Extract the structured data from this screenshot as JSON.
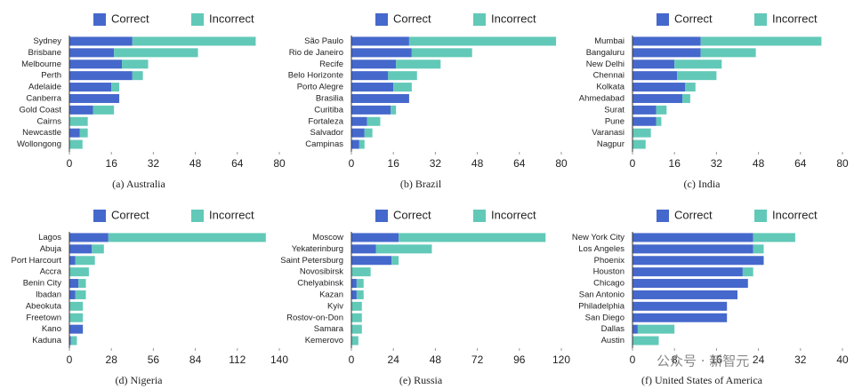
{
  "chart_data": [
    {
      "type": "bar",
      "orientation": "horizontal",
      "title": "(a) Australia",
      "categories": [
        "Sydney",
        "Brisbane",
        "Melbourne",
        "Perth",
        "Adelaide",
        "Canberra",
        "Gold Coast",
        "Cairns",
        "Newcastle",
        "Wollongong"
      ],
      "series": [
        {
          "name": "Correct",
          "color": "#4568cc",
          "values": [
            24,
            17,
            20,
            24,
            16,
            19,
            9,
            0,
            4,
            0
          ]
        },
        {
          "name": "Incorrect",
          "color": "#62c9b8",
          "values": [
            47,
            32,
            10,
            4,
            3,
            0,
            8,
            7,
            3,
            5
          ]
        }
      ],
      "xlim": [
        0,
        80
      ],
      "xticks": [
        0,
        16,
        32,
        48,
        64,
        80
      ]
    },
    {
      "type": "bar",
      "orientation": "horizontal",
      "title": "(b) Brazil",
      "categories": [
        "São Paulo",
        "Rio de Janeiro",
        "Recife",
        "Belo Horizonte",
        "Porto Alegre",
        "Brasilia",
        "Curitiba",
        "Fortaleza",
        "Salvador",
        "Campinas"
      ],
      "series": [
        {
          "name": "Correct",
          "color": "#4568cc",
          "values": [
            22,
            23,
            17,
            14,
            16,
            22,
            15,
            6,
            5,
            3
          ]
        },
        {
          "name": "Incorrect",
          "color": "#62c9b8",
          "values": [
            56,
            23,
            17,
            11,
            7,
            0,
            2,
            5,
            3,
            2
          ]
        }
      ],
      "xlim": [
        0,
        80
      ],
      "xticks": [
        0,
        16,
        32,
        48,
        64,
        80
      ]
    },
    {
      "type": "bar",
      "orientation": "horizontal",
      "title": "(c) India",
      "categories": [
        "Mumbai",
        "Bangaluru",
        "New Delhi",
        "Chennai",
        "Kolkata",
        "Ahmedabad",
        "Surat",
        "Pune",
        "Varanasi",
        "Nagpur"
      ],
      "series": [
        {
          "name": "Correct",
          "color": "#4568cc",
          "values": [
            26,
            26,
            16,
            17,
            20,
            19,
            9,
            9,
            0,
            0
          ]
        },
        {
          "name": "Incorrect",
          "color": "#62c9b8",
          "values": [
            46,
            21,
            18,
            15,
            4,
            3,
            4,
            2,
            7,
            5
          ]
        }
      ],
      "xlim": [
        0,
        80
      ],
      "xticks": [
        0,
        16,
        32,
        48,
        64,
        80
      ]
    },
    {
      "type": "bar",
      "orientation": "horizontal",
      "title": "(d) Nigeria",
      "categories": [
        "Lagos",
        "Abuja",
        "Port Harcourt",
        "Accra",
        "Benin City",
        "Ibadan",
        "Abeokuta",
        "Freetown",
        "Kano",
        "Kaduna"
      ],
      "series": [
        {
          "name": "Correct",
          "color": "#4568cc",
          "values": [
            26,
            15,
            4,
            0,
            6,
            4,
            0,
            0,
            9,
            1
          ]
        },
        {
          "name": "Incorrect",
          "color": "#62c9b8",
          "values": [
            105,
            8,
            13,
            13,
            5,
            7,
            9,
            9,
            0,
            4
          ]
        }
      ],
      "xlim": [
        0,
        140
      ],
      "xticks": [
        0,
        28,
        56,
        84,
        112,
        140
      ]
    },
    {
      "type": "bar",
      "orientation": "horizontal",
      "title": "(e) Russia",
      "categories": [
        "Moscow",
        "Yekaterinburg",
        "Saint Petersburg",
        "Novosibirsk",
        "Chelyabinsk",
        "Kazan",
        "Kyiv",
        "Rostov-on-Don",
        "Samara",
        "Kemerovo"
      ],
      "series": [
        {
          "name": "Correct",
          "color": "#4568cc",
          "values": [
            27,
            14,
            23,
            0,
            3,
            3,
            0,
            0,
            0,
            0
          ]
        },
        {
          "name": "Incorrect",
          "color": "#62c9b8",
          "values": [
            84,
            32,
            4,
            11,
            4,
            4,
            6,
            6,
            6,
            4
          ]
        }
      ],
      "xlim": [
        0,
        120
      ],
      "xticks": [
        0,
        24,
        48,
        72,
        96,
        120
      ]
    },
    {
      "type": "bar",
      "orientation": "horizontal",
      "title": "(f) United States of America",
      "categories": [
        "New York City",
        "Los Angeles",
        "Phoenix",
        "Houston",
        "Chicago",
        "San Antonio",
        "Philadelphia",
        "San Diego",
        "Dallas",
        "Austin"
      ],
      "series": [
        {
          "name": "Correct",
          "color": "#4568cc",
          "values": [
            23,
            23,
            25,
            21,
            22,
            20,
            18,
            18,
            1,
            0
          ]
        },
        {
          "name": "Incorrect",
          "color": "#62c9b8",
          "values": [
            8,
            2,
            0,
            2,
            0,
            0,
            0,
            0,
            7,
            5
          ]
        }
      ],
      "xlim": [
        0,
        40
      ],
      "xticks": [
        0,
        8,
        16,
        24,
        32,
        40
      ]
    }
  ],
  "watermark": "公众号 · 新智元"
}
